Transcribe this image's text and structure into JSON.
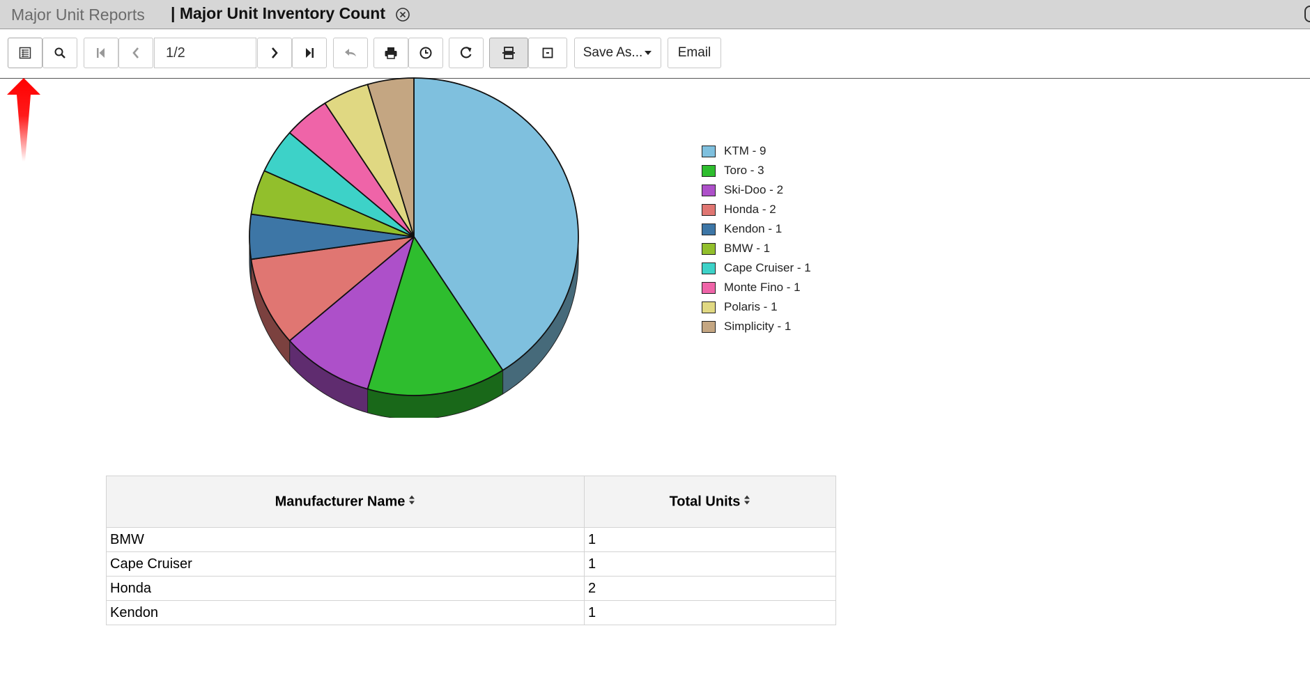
{
  "tabs": {
    "inactive_label": "Major Unit Reports",
    "active_label": "| Major Unit Inventory Count"
  },
  "toolbar": {
    "page_value": "1/2",
    "save_as_label": "Save As...",
    "email_label": "Email",
    "icons": [
      "table-of-contents-icon",
      "search-icon",
      "first-page-icon",
      "previous-page-icon",
      "next-page-icon",
      "last-page-icon",
      "undo-icon",
      "print-icon",
      "history-icon",
      "refresh-icon",
      "split-view-icon",
      "single-page-icon"
    ]
  },
  "chart_data": {
    "type": "pie",
    "categories": [
      "KTM",
      "Toro",
      "Ski-Doo",
      "Honda",
      "Kendon",
      "BMW",
      "Cape Cruiser",
      "Monte Fino",
      "Polaris",
      "Simplicity"
    ],
    "values": [
      9,
      3,
      2,
      2,
      1,
      1,
      1,
      1,
      1,
      1
    ],
    "legend_labels": [
      "KTM - 9",
      "Toro - 3",
      "Ski-Doo - 2",
      "Honda - 2",
      "Kendon - 1",
      "BMW - 1",
      "Cape Cruiser - 1",
      "Monte Fino - 1",
      "Polaris - 1",
      "Simplicity - 1"
    ],
    "colors": [
      "#7fc0de",
      "#2ebd2e",
      "#ad50c9",
      "#e07672",
      "#3d76a6",
      "#92bf2c",
      "#3dd2c8",
      "#ef64a8",
      "#e0d882",
      "#c4a682"
    ],
    "legend_position": "right",
    "style": "3d"
  },
  "table": {
    "headers": [
      "Manufacturer Name",
      "Total Units"
    ],
    "rows": [
      [
        "BMW",
        "1"
      ],
      [
        "Cape Cruiser",
        "1"
      ],
      [
        "Honda",
        "2"
      ],
      [
        "Kendon",
        "1"
      ]
    ]
  },
  "annotation": {
    "arrow_color": "#ff0000"
  }
}
